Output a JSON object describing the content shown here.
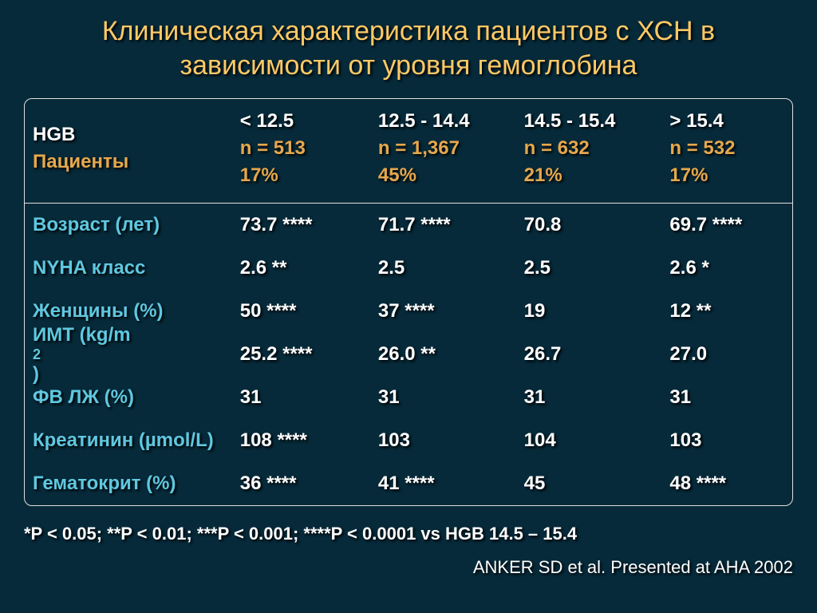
{
  "colors": {
    "background": "#062a3a",
    "title": "#ffc966",
    "header_white": "#ffffff",
    "header_accent": "#e6a84d",
    "row_label": "#5fc8e0",
    "row_value": "#ffffff",
    "border": "#e0e0e0"
  },
  "title": "Клиническая характеристика пациентов с ХСН в зависимости от уровня гемоглобина",
  "header": {
    "left": {
      "l1": "HGB",
      "l2": "Пациенты"
    },
    "cols": [
      {
        "range": "< 12.5",
        "n": "n = 513",
        "pct": "17%"
      },
      {
        "range": "12.5 - 14.4",
        "n": "n = 1,367",
        "pct": "45%"
      },
      {
        "range": "14.5 - 15.4",
        "n": "n = 632",
        "pct": "21%"
      },
      {
        "range": "> 15.4",
        "n": "n = 532",
        "pct": "17%"
      }
    ]
  },
  "rows": [
    {
      "label": "Возраст (лет)",
      "v": [
        "73.7 ****",
        "71.7 ****",
        "70.8",
        "69.7 ****"
      ]
    },
    {
      "label": "NYHA класс",
      "v": [
        "2.6 **",
        "2.5",
        "2.5",
        "2.6 *"
      ]
    },
    {
      "label": "Женщины (%)",
      "v": [
        "50 ****",
        "37 ****",
        "19",
        "12 **"
      ]
    },
    {
      "label": "ИМТ (kg/m2)",
      "v": [
        "25.2 ****",
        "26.0 **",
        "26.7",
        "27.0"
      ],
      "sup2": true
    },
    {
      "label": "ФВ ЛЖ (%)",
      "v": [
        "31",
        "31",
        "31",
        "31"
      ]
    },
    {
      "label": "Креатинин (µmol/L)",
      "v": [
        "108 ****",
        "103",
        "104",
        "103"
      ]
    },
    {
      "label": "Гематокрит (%)",
      "v": [
        "36 ****",
        "41 ****",
        "45",
        "48 ****"
      ]
    }
  ],
  "footnote": "*P < 0.05; **P < 0.01; ***P < 0.001; ****P < 0.0001 vs HGB 14.5 – 15.4",
  "citation": "ANKER SD et al. Presented at AHA 2002"
}
